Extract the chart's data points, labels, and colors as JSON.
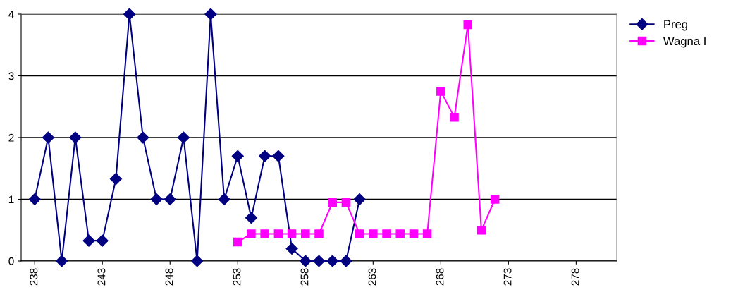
{
  "chart_data": {
    "type": "line",
    "xlim": [
      237,
      281
    ],
    "xticks": [
      238,
      243,
      248,
      253,
      258,
      263,
      268,
      273,
      278
    ],
    "ylim": [
      0,
      4
    ],
    "yticks": [
      0,
      1,
      2,
      3,
      4
    ],
    "grid": "y",
    "legend": "top right",
    "tick_labels": true,
    "series": [
      {
        "name": "Preg",
        "color": "#000080",
        "marker": "diamond",
        "x": [
          238,
          239,
          240,
          241,
          242,
          243,
          244,
          245,
          246,
          247,
          248,
          249,
          250,
          251,
          252,
          253,
          254,
          255,
          256,
          257,
          258,
          259,
          260,
          261,
          262
        ],
        "values": [
          1,
          2,
          0,
          2,
          0.33,
          0.33,
          1.33,
          4,
          2,
          1,
          1,
          2,
          0,
          4,
          1,
          1.7,
          0.7,
          1.7,
          1.7,
          0.2,
          0,
          0,
          0,
          0,
          1
        ]
      },
      {
        "name": "Wagna I",
        "color": "#ff00ff",
        "marker": "square",
        "x": [
          253,
          254,
          255,
          256,
          257,
          258,
          259,
          260,
          261,
          262,
          263,
          264,
          265,
          266,
          267,
          268,
          269,
          270,
          271,
          272
        ],
        "values": [
          0.31,
          0.44,
          0.44,
          0.44,
          0.44,
          0.44,
          0.44,
          0.95,
          0.95,
          0.44,
          0.44,
          0.44,
          0.44,
          0.44,
          0.44,
          2.75,
          2.33,
          3.83,
          0.5,
          1
        ]
      }
    ]
  }
}
